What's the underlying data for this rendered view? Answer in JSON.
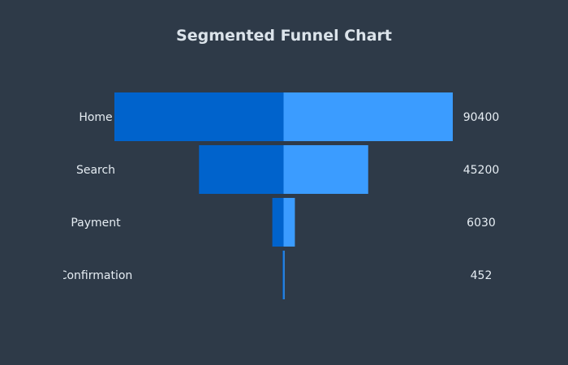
{
  "chart_data": {
    "type": "funnel",
    "title": "Segmented Funnel Chart",
    "categories": [
      "Home",
      "Search",
      "Payment",
      "Confirmation"
    ],
    "values": [
      90400,
      45200,
      6030,
      452
    ],
    "segments": [
      0.5,
      0.5
    ],
    "colors": {
      "background": "#2e3a48",
      "left_segment": "#0063cc",
      "right_segment": "#3b9cff",
      "text": "#e6edf3",
      "title": "#dbe3ea"
    }
  }
}
